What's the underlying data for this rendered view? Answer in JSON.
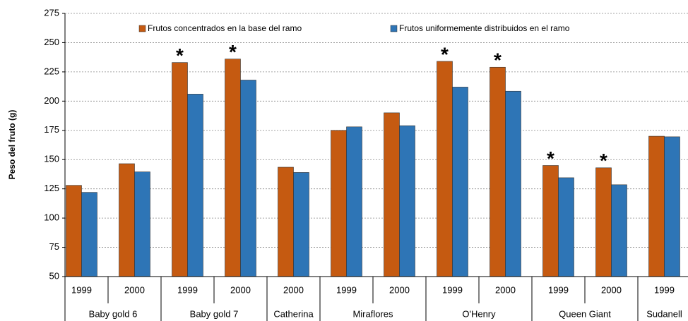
{
  "chart_data": {
    "type": "bar",
    "ylabel": "Peso del fruto (g)",
    "groups": [
      {
        "name": "Baby gold 6",
        "categories": [
          "1999",
          "2000"
        ]
      },
      {
        "name": "Baby gold 7",
        "categories": [
          "1999",
          "2000"
        ]
      },
      {
        "name": "Catherina",
        "categories": [
          "2000"
        ]
      },
      {
        "name": "Miraflores",
        "categories": [
          "1999",
          "2000"
        ]
      },
      {
        "name": "O'Henry",
        "categories": [
          "1999",
          "2000"
        ]
      },
      {
        "name": "Queen Giant",
        "categories": [
          "1999",
          "2000"
        ]
      },
      {
        "name": "Sudanell",
        "categories": [
          "1999"
        ]
      }
    ],
    "series": [
      {
        "name": "Frutos concentrados en la base del ramo",
        "color": "#c55a11",
        "values": [
          128,
          146.5,
          233,
          236,
          143.5,
          175,
          190,
          234,
          229,
          145,
          143,
          170
        ]
      },
      {
        "name": "Frutos uniformemente distribuidos en el ramo",
        "color": "#2e75b6",
        "values": [
          122,
          139.5,
          206,
          218,
          139,
          178,
          179,
          212,
          208.5,
          134.5,
          128.5,
          169.5
        ]
      }
    ],
    "annotations": [
      null,
      null,
      "*",
      "*",
      null,
      null,
      null,
      "*",
      "*",
      "*",
      "*",
      null
    ],
    "ylim": [
      50,
      275
    ],
    "yticks": [
      50,
      75,
      100,
      125,
      150,
      175,
      200,
      225,
      250,
      275
    ],
    "grid": true,
    "legend": "top"
  }
}
